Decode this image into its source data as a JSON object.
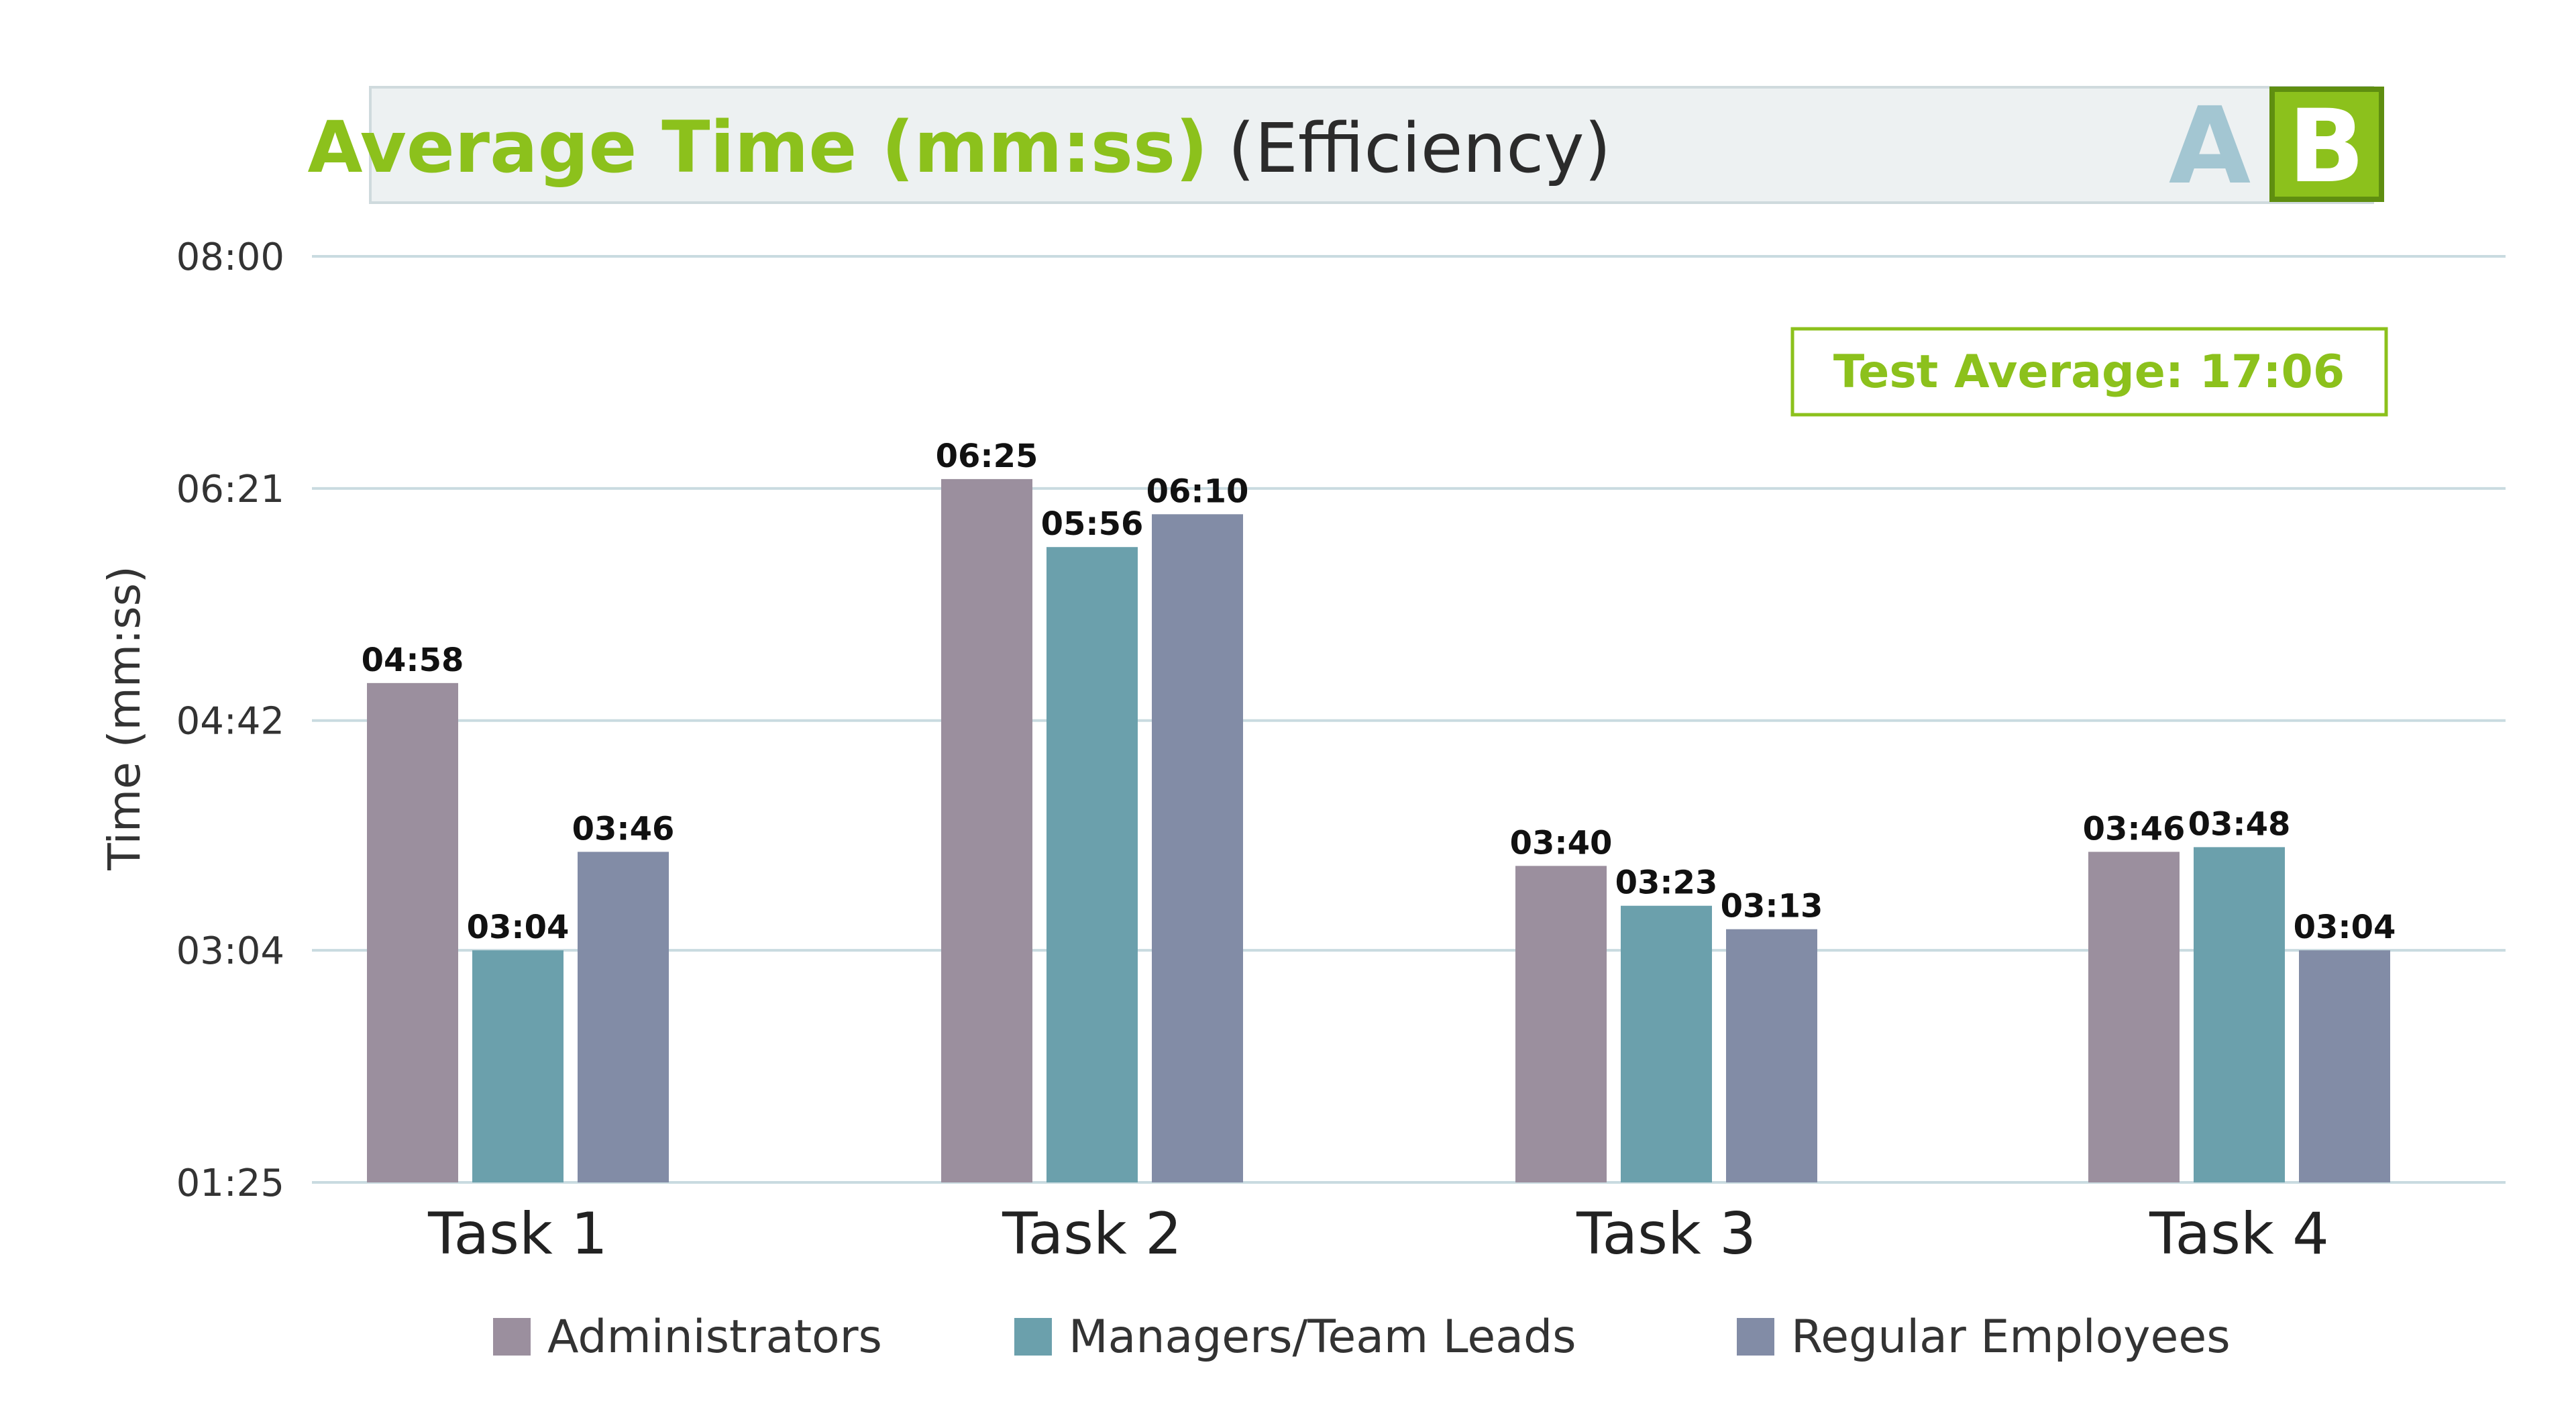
{
  "title": {
    "main": "Average Time (mm:ss)",
    "sub": "(Efficiency)",
    "variant_a": "A",
    "variant_b": "B"
  },
  "colors": {
    "accent": "#8cc11c",
    "Administrators": "#9b8f9e",
    "Managers/Team Leads": "#6ba0ac",
    "Regular Employees": "#828ca6"
  },
  "test_average": "Test Average: 17:06",
  "chart_data": {
    "type": "bar",
    "title": "Average Time (mm:ss) (Efficiency)",
    "xlabel": "",
    "ylabel": "Time (mm:ss)",
    "categories": [
      "Task 1",
      "Task 2",
      "Task 3",
      "Task 4"
    ],
    "y_ticks": [
      "01:25",
      "03:04",
      "04:42",
      "06:21",
      "08:00"
    ],
    "ylim": [
      "01:25",
      "08:00"
    ],
    "grid": true,
    "legend": "bottom",
    "series": [
      {
        "name": "Administrators",
        "values": [
          "04:58",
          "06:25",
          "03:40",
          "03:46"
        ]
      },
      {
        "name": "Managers/Team Leads",
        "values": [
          "03:04",
          "05:56",
          "03:23",
          "03:48"
        ]
      },
      {
        "name": "Regular Employees",
        "values": [
          "03:46",
          "06:10",
          "03:13",
          "03:04"
        ]
      }
    ]
  }
}
